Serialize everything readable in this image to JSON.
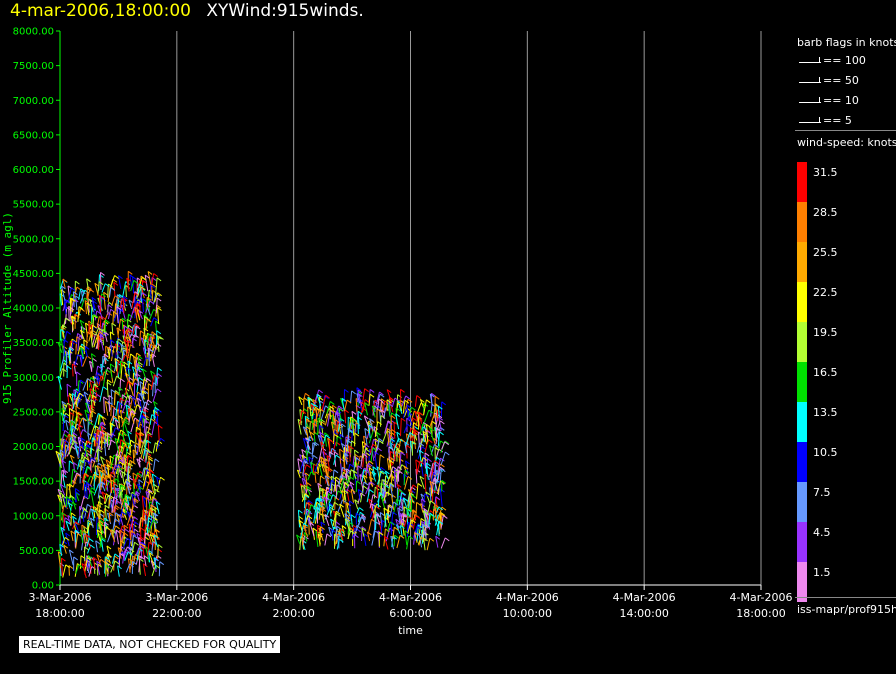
{
  "header": {
    "datetime": "4-mar-2006,18:00:00",
    "title": "XYWind:915winds."
  },
  "chart_data": {
    "type": "scatter",
    "ylabel": "915 Profiler Altitude (m agl)",
    "xlabel": "time",
    "ylim": [
      0,
      8000
    ],
    "y_ticks": [
      "0.00",
      "500.00",
      "1000.00",
      "1500.00",
      "2000.00",
      "2500.00",
      "3000.00",
      "3500.00",
      "4000.00",
      "4500.00",
      "5000.00",
      "5500.00",
      "6000.00",
      "6500.00",
      "7000.00",
      "7500.00",
      "8000.00"
    ],
    "x_ticks": [
      [
        "3-Mar-2006",
        "18:00:00"
      ],
      [
        "3-Mar-2006",
        "22:00:00"
      ],
      [
        "4-Mar-2006",
        "2:00:00"
      ],
      [
        "4-Mar-2006",
        "6:00:00"
      ],
      [
        "4-Mar-2006",
        "10:00:00"
      ],
      [
        "4-Mar-2006",
        "14:00:00"
      ],
      [
        "4-Mar-2006",
        "18:00:00"
      ]
    ],
    "xlim_hours": [
      0,
      24
    ],
    "grid_vertical": true,
    "clusters": [
      {
        "t_start_h": 0.0,
        "t_end_h": 3.4,
        "alt_min": 100,
        "alt_max": 4300
      },
      {
        "t_start_h": 8.2,
        "t_end_h": 13.1,
        "alt_min": 500,
        "alt_max": 2650
      }
    ],
    "barb_legend_title": "barb flags in knots",
    "barb_legend": [
      "== 100",
      "== 50",
      "== 10",
      "== 5"
    ],
    "colorbar_title": "wind-speed: knots",
    "colorbar": [
      {
        "label": "31.5",
        "color": "#ff0000"
      },
      {
        "label": "28.5",
        "color": "#ff7f00"
      },
      {
        "label": "25.5",
        "color": "#ffaa00"
      },
      {
        "label": "22.5",
        "color": "#ffff00"
      },
      {
        "label": "19.5",
        "color": "#b3ff33"
      },
      {
        "label": "16.5",
        "color": "#00e000"
      },
      {
        "label": "13.5",
        "color": "#00ffff"
      },
      {
        "label": "10.5",
        "color": "#0000ff"
      },
      {
        "label": "7.5",
        "color": "#6699ff"
      },
      {
        "label": "4.5",
        "color": "#9933ff"
      },
      {
        "label": "1.5",
        "color": "#ee88ee"
      }
    ]
  },
  "footer": {
    "source": "iss-mapr/prof915h",
    "note": "REAL-TIME DATA, NOT CHECKED FOR QUALITY"
  }
}
